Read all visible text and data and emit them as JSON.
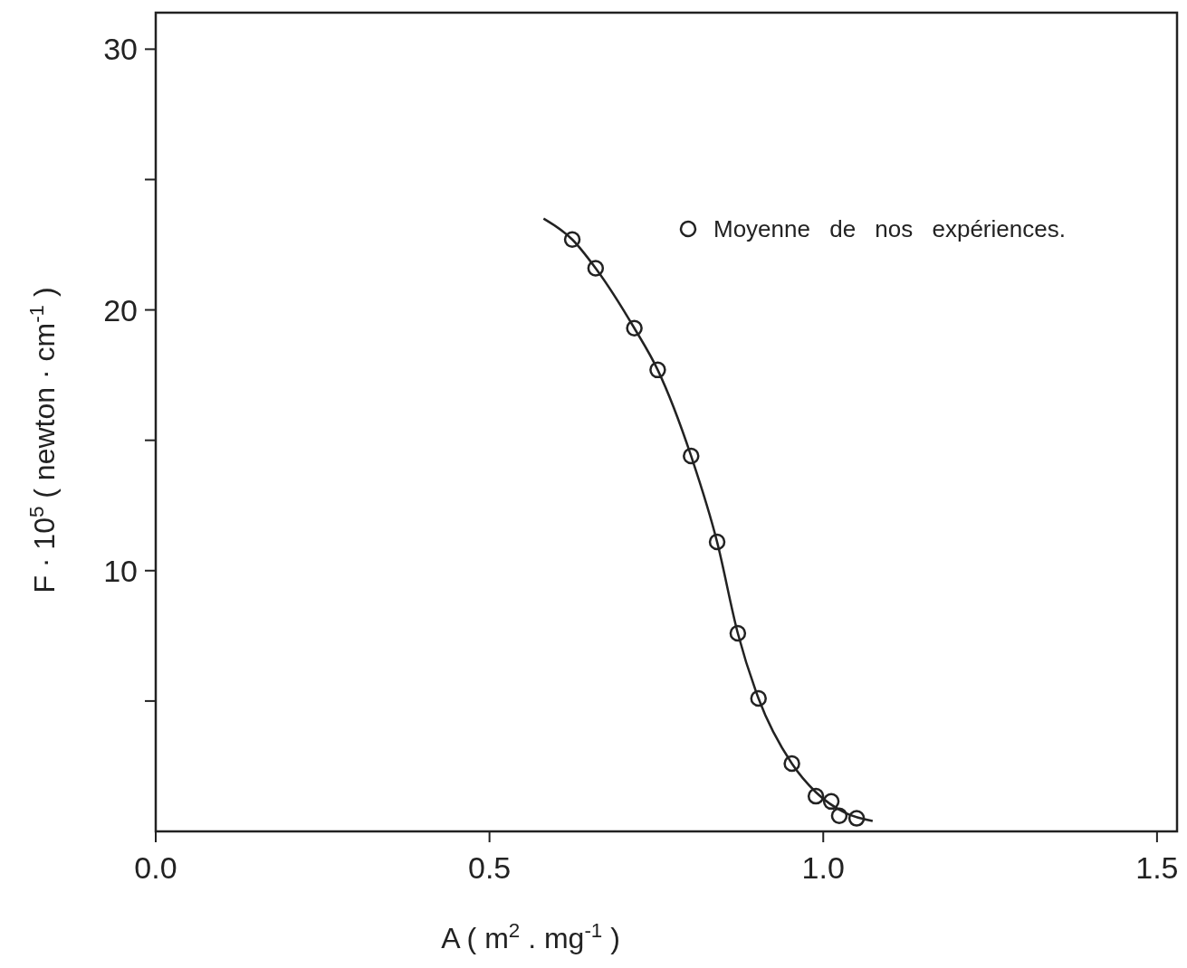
{
  "chart_data": {
    "type": "scatter",
    "xlabel": "A ( m$^{2}$ . mg$^{-1}$ )",
    "ylabel": "F · 10$^{5}$ ( newton · cm$^{-1}$ )",
    "xlim": [
      0,
      1.53
    ],
    "ylim": [
      0,
      31.4
    ],
    "xticks": [
      {
        "value": 0,
        "label": "0.0"
      },
      0.5,
      {
        "value": 1,
        "label": "1.0"
      },
      1.5
    ],
    "yticks": [
      {
        "value": 5,
        "label": null
      },
      10,
      {
        "value": 15,
        "label": null
      },
      20,
      {
        "value": 25,
        "label": null
      },
      30
    ],
    "grid": false,
    "legend": "top right",
    "series": [
      {
        "name": "Moyenne de nos expériences.",
        "marker": "circle",
        "color": "#222222",
        "x": [
          0.624,
          0.659,
          0.717,
          0.752,
          0.802,
          0.841,
          0.872,
          0.903,
          0.953,
          0.989,
          1.012,
          1.024,
          1.05
        ],
        "values": [
          22.7,
          21.6,
          19.3,
          17.7,
          14.4,
          11.1,
          7.6,
          5.1,
          2.6,
          1.35,
          1.15,
          0.6,
          0.5
        ]
      },
      {
        "type": "line",
        "marker": "none",
        "color": "#222222",
        "line_style": "solid",
        "x": [
          0.581,
          0.624,
          0.659,
          0.717,
          0.752,
          0.802,
          0.841,
          0.872,
          0.903,
          0.953,
          0.989,
          1.034,
          1.074
        ],
        "values": [
          23.5,
          22.7,
          21.6,
          19.3,
          17.7,
          14.4,
          11.1,
          7.6,
          5.1,
          2.6,
          1.5,
          0.7,
          0.4
        ]
      }
    ]
  }
}
